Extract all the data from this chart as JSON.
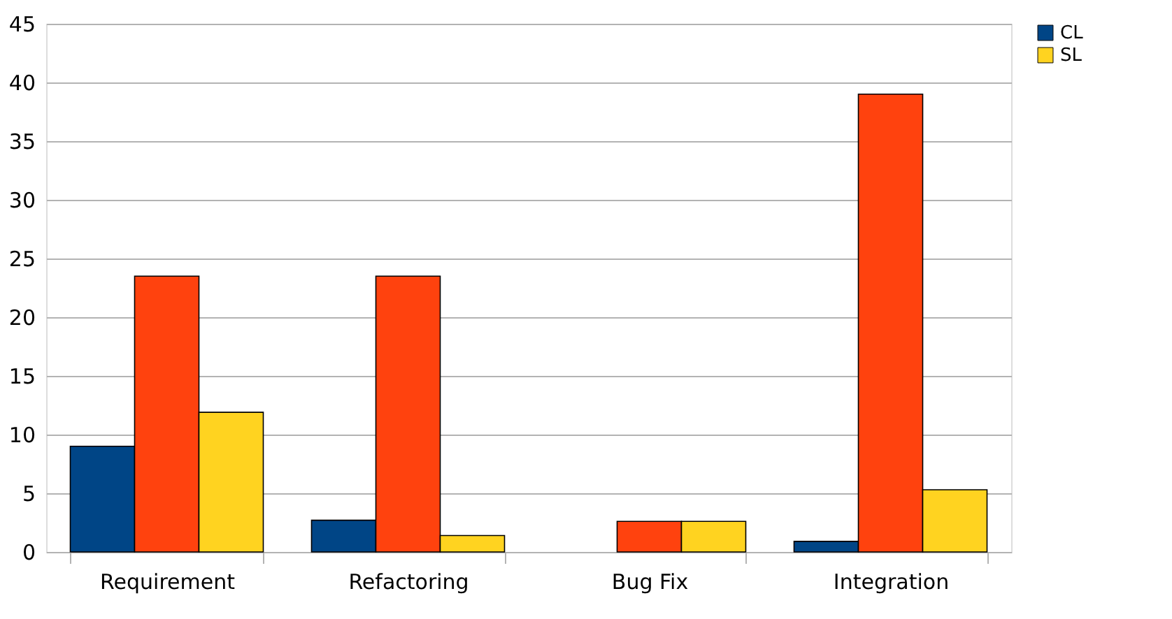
{
  "chart_data": {
    "type": "bar",
    "categories": [
      "Requirement",
      "Refactoring",
      "Bug Fix",
      "Integration"
    ],
    "series": [
      {
        "name": "CL",
        "color": "#004586",
        "values": [
          9.0,
          2.7,
          null,
          0.9
        ]
      },
      {
        "color": "#ff420e",
        "values": [
          23.5,
          23.5,
          2.6,
          39.0
        ]
      },
      {
        "name": "SL",
        "color": "#ffd320",
        "values": [
          11.9,
          1.4,
          2.6,
          5.3
        ]
      }
    ],
    "ylim": [
      0,
      45
    ],
    "yticks": [
      0,
      5,
      10,
      15,
      20,
      25,
      30,
      35,
      40,
      45
    ],
    "grid": "y",
    "legend": "right"
  }
}
